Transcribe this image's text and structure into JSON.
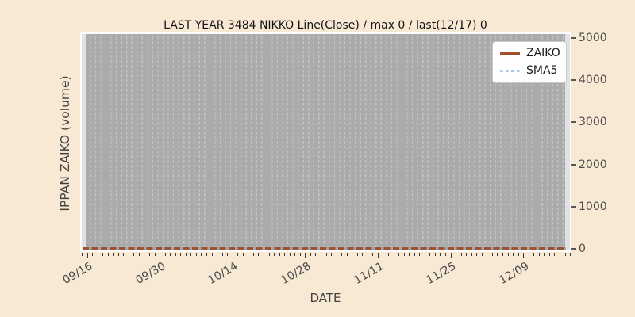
{
  "title": "LAST YEAR 3484 NIKKO Line(Close) / max 0 / last(12/17) 0",
  "axes": {
    "x_label": "DATE",
    "y_label": "IPPAN ZAIKO (volume)",
    "y_ticks": [
      "0",
      "1000",
      "2000",
      "3000",
      "4000",
      "5000"
    ],
    "x_ticks": [
      "09/16",
      "09/30",
      "10/14",
      "10/28",
      "11/11",
      "11/25",
      "12/09"
    ]
  },
  "legend": {
    "items": [
      {
        "label": "ZAIKO",
        "style": "solid",
        "color": "#a0522d"
      },
      {
        "label": "SMA5",
        "style": "dotted",
        "color": "#a9c7e3"
      }
    ]
  },
  "chart_data": {
    "type": "line",
    "title": "LAST YEAR 3484 NIKKO Line(Close) / max 0 / last(12/17) 0",
    "xlabel": "DATE",
    "ylabel": "IPPAN ZAIKO (volume)",
    "x_start": "09/16",
    "x_end": "12/17",
    "x_frequency": "daily",
    "num_points": 93,
    "x_major_ticks": [
      "09/16",
      "09/30",
      "10/14",
      "10/28",
      "11/11",
      "11/25",
      "12/09"
    ],
    "x_major_interval_days": 14,
    "ylim": [
      0,
      5000
    ],
    "y_tick_step": 1000,
    "grid": "vertical-dashed-daily",
    "legend_position": "upper right",
    "series": [
      {
        "name": "ZAIKO",
        "style": "solid",
        "color": "#a0522d",
        "constant_value": 0
      },
      {
        "name": "SMA5",
        "style": "dotted",
        "color": "#a9c7e3",
        "constant_value": 0
      }
    ],
    "max_value": 0,
    "last_date": "12/17",
    "last_value": 0
  },
  "colors": {
    "figure_bg": "#f8e9d5",
    "plot_bg": "#e2e2e2",
    "plot_inner_bg": "#ababab",
    "gridline": "#c4c4c4",
    "plot_border": "#fcfcfc",
    "zaiko_line": "#a0522d",
    "sma5_dots": "#a9c7e3",
    "tick_text": "#4a4a4a",
    "title_text": "#141414"
  }
}
